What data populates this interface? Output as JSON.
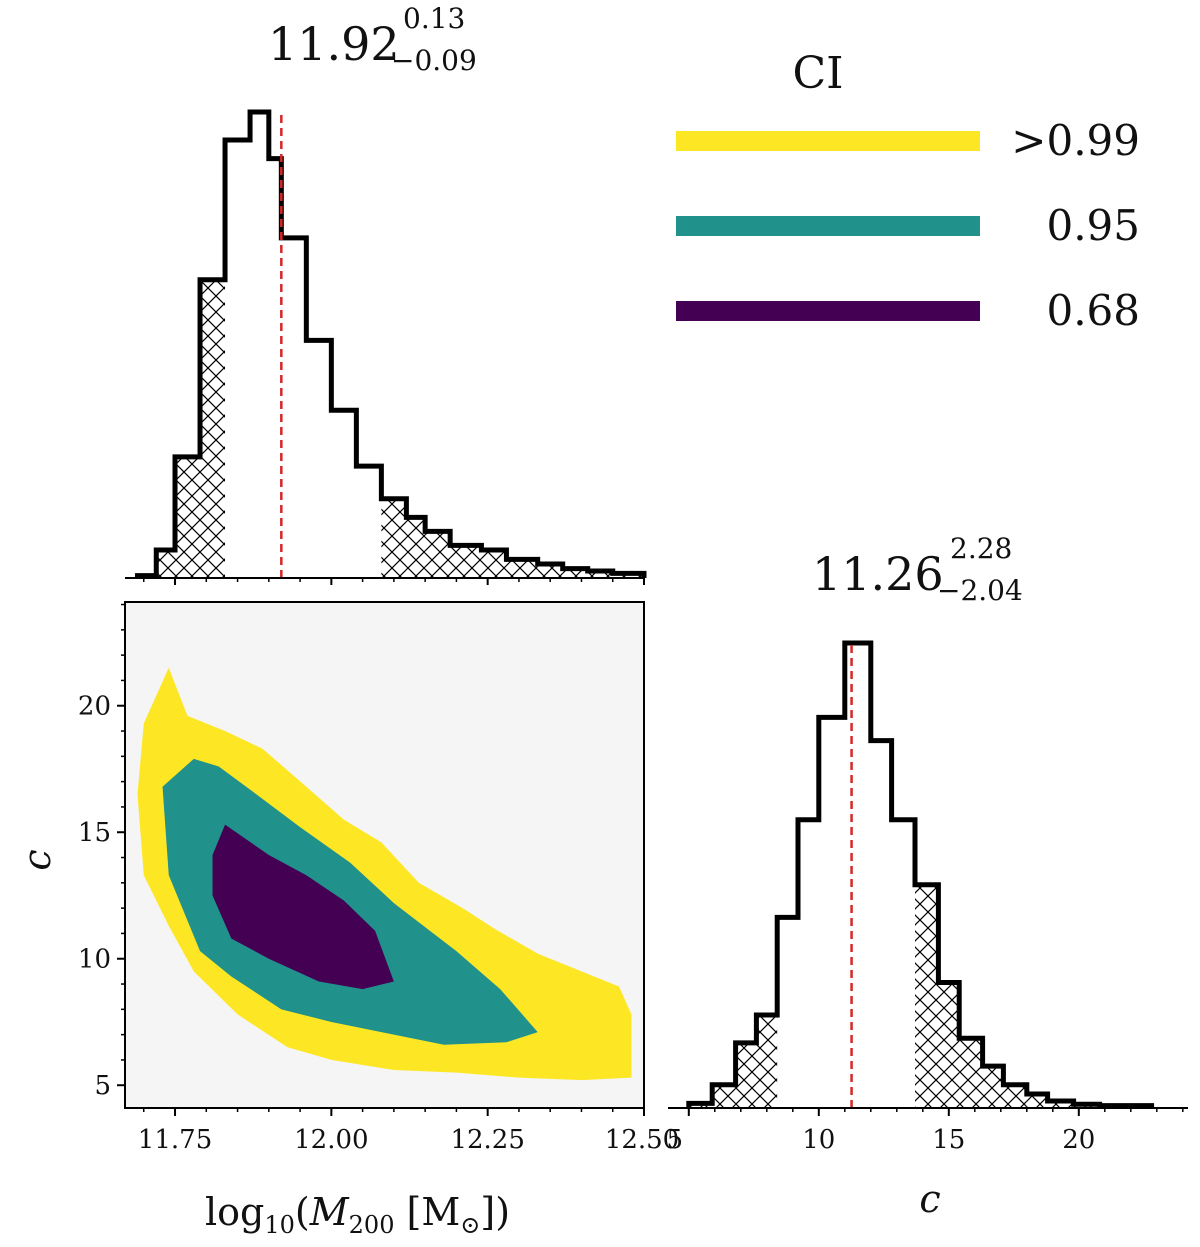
{
  "legend": {
    "title": "CI",
    "entries": [
      {
        "label": ">0.99",
        "color": "#fde725"
      },
      {
        "label": "0.95",
        "color": "#21918c"
      },
      {
        "label": "0.68",
        "color": "#440154"
      }
    ]
  },
  "colors": {
    "hist_line": "#000000",
    "median_line": "#d62728",
    "panel_bg": "#f5f5f5"
  },
  "chart_data": [
    {
      "type": "bar",
      "title": "11.92",
      "title_sup": "0.13",
      "title_sub": "−0.09",
      "xlabel": "log10(M200 [M⊙])",
      "xlim": [
        11.67,
        12.5
      ],
      "median": 11.92,
      "hatched_below": 11.83,
      "hatched_above": 12.08,
      "bin_edges": [
        11.69,
        11.72,
        11.75,
        11.79,
        11.83,
        11.87,
        11.9,
        11.92,
        11.96,
        12.0,
        12.04,
        12.08,
        12.12,
        12.15,
        12.19,
        12.24,
        12.28,
        12.33,
        12.37,
        12.41,
        12.45,
        12.5
      ],
      "values": [
        0.005,
        0.06,
        0.26,
        0.64,
        0.94,
        1.0,
        0.9,
        0.73,
        0.51,
        0.36,
        0.24,
        0.17,
        0.13,
        0.1,
        0.07,
        0.06,
        0.04,
        0.03,
        0.02,
        0.015,
        0.01
      ]
    },
    {
      "type": "heatmap",
      "subtype": "contour",
      "xlabel": "log10(M200 [M⊙])",
      "ylabel": "c",
      "xlim": [
        11.67,
        12.5
      ],
      "ylim": [
        4.1,
        24.1
      ],
      "x_ticks": [
        "11.75",
        "12.00",
        "12.25",
        "12.50"
      ],
      "x_tick_values": [
        11.75,
        12.0,
        12.25,
        12.5
      ],
      "y_ticks": [
        "5",
        "10",
        "15",
        "20"
      ],
      "y_tick_values": [
        5,
        10,
        15,
        20
      ],
      "levels": [
        {
          "label": ">0.99",
          "color": "#fde725",
          "points": [
            [
              11.7,
              19.3
            ],
            [
              11.74,
              21.5
            ],
            [
              11.77,
              19.6
            ],
            [
              11.83,
              19.0
            ],
            [
              11.89,
              18.3
            ],
            [
              11.96,
              16.8
            ],
            [
              12.02,
              15.5
            ],
            [
              12.08,
              14.6
            ],
            [
              12.14,
              13.0
            ],
            [
              12.21,
              12.0
            ],
            [
              12.26,
              11.2
            ],
            [
              12.33,
              10.2
            ],
            [
              12.4,
              9.5
            ],
            [
              12.46,
              8.9
            ],
            [
              12.48,
              7.8
            ],
            [
              12.48,
              5.3
            ],
            [
              12.4,
              5.2
            ],
            [
              12.3,
              5.3
            ],
            [
              12.2,
              5.5
            ],
            [
              12.1,
              5.6
            ],
            [
              12.0,
              6.0
            ],
            [
              11.93,
              6.5
            ],
            [
              11.85,
              7.8
            ],
            [
              11.78,
              9.5
            ],
            [
              11.74,
              11.3
            ],
            [
              11.7,
              13.3
            ],
            [
              11.69,
              16.5
            ]
          ]
        },
        {
          "label": "0.95",
          "color": "#21918c",
          "points": [
            [
              11.73,
              16.8
            ],
            [
              11.78,
              17.9
            ],
            [
              11.82,
              17.6
            ],
            [
              11.88,
              16.5
            ],
            [
              11.95,
              15.2
            ],
            [
              12.03,
              13.8
            ],
            [
              12.1,
              12.2
            ],
            [
              12.2,
              10.3
            ],
            [
              12.27,
              8.8
            ],
            [
              12.33,
              7.1
            ],
            [
              12.28,
              6.7
            ],
            [
              12.18,
              6.6
            ],
            [
              12.08,
              7.1
            ],
            [
              12.0,
              7.5
            ],
            [
              11.92,
              8.0
            ],
            [
              11.84,
              9.3
            ],
            [
              11.79,
              10.3
            ],
            [
              11.74,
              13.3
            ]
          ]
        },
        {
          "label": "0.68",
          "color": "#440154",
          "points": [
            [
              11.81,
              14.1
            ],
            [
              11.83,
              15.3
            ],
            [
              11.9,
              14.1
            ],
            [
              11.96,
              13.3
            ],
            [
              12.02,
              12.3
            ],
            [
              12.07,
              11.1
            ],
            [
              12.1,
              9.1
            ],
            [
              12.05,
              8.8
            ],
            [
              11.98,
              9.1
            ],
            [
              11.9,
              10.0
            ],
            [
              11.84,
              10.8
            ],
            [
              11.81,
              12.5
            ]
          ]
        }
      ]
    },
    {
      "type": "bar",
      "title": "11.26",
      "title_sup": "2.28",
      "title_sub": "−2.04",
      "xlabel": "c",
      "xlim": [
        4.2,
        24.2
      ],
      "x_ticks": [
        "5",
        "10",
        "15",
        "20"
      ],
      "x_tick_values": [
        5,
        10,
        15,
        20
      ],
      "median": 11.26,
      "hatched_below": 8.4,
      "hatched_above": 13.7,
      "bin_edges": [
        5.0,
        5.9,
        6.8,
        7.6,
        8.4,
        9.2,
        10.0,
        11.0,
        12.0,
        12.8,
        13.7,
        14.6,
        15.4,
        16.3,
        17.1,
        18.0,
        18.8,
        19.8,
        20.8,
        22.8
      ],
      "values": [
        0.01,
        0.05,
        0.14,
        0.2,
        0.41,
        0.62,
        0.84,
        1.0,
        0.79,
        0.62,
        0.48,
        0.27,
        0.15,
        0.09,
        0.05,
        0.03,
        0.015,
        0.008,
        0.005
      ]
    }
  ]
}
